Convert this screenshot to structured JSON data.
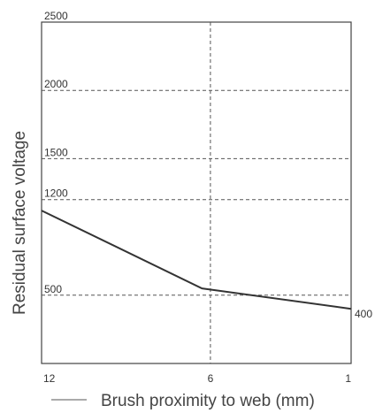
{
  "chart_data": {
    "type": "line",
    "title": "",
    "xlabel": "Brush proximity to web (mm)",
    "ylabel": "Residual surface voltage",
    "x_categories": [
      "12",
      "6",
      "1"
    ],
    "series": [
      {
        "color": "#333333",
        "points": [
          {
            "x": 12,
            "y": 1120
          },
          {
            "x": 6.3,
            "y": 550
          },
          {
            "x": 1,
            "y": 400
          }
        ]
      }
    ],
    "y_ticks": [
      {
        "value": 2500,
        "label": "2500"
      },
      {
        "value": 2000,
        "label": "2000"
      },
      {
        "value": 1500,
        "label": "1500"
      },
      {
        "value": 1200,
        "label": "1200"
      },
      {
        "value": 500,
        "label": "500"
      }
    ],
    "data_labels": [
      {
        "x": 1,
        "y": 400,
        "text": "400"
      }
    ],
    "ylim": [
      0,
      2500
    ],
    "xlim": [
      12,
      1
    ],
    "grid": true,
    "legend": "below-chart",
    "colors": {
      "line": "#333333",
      "grid": "#555555",
      "axis": "#444444"
    }
  }
}
